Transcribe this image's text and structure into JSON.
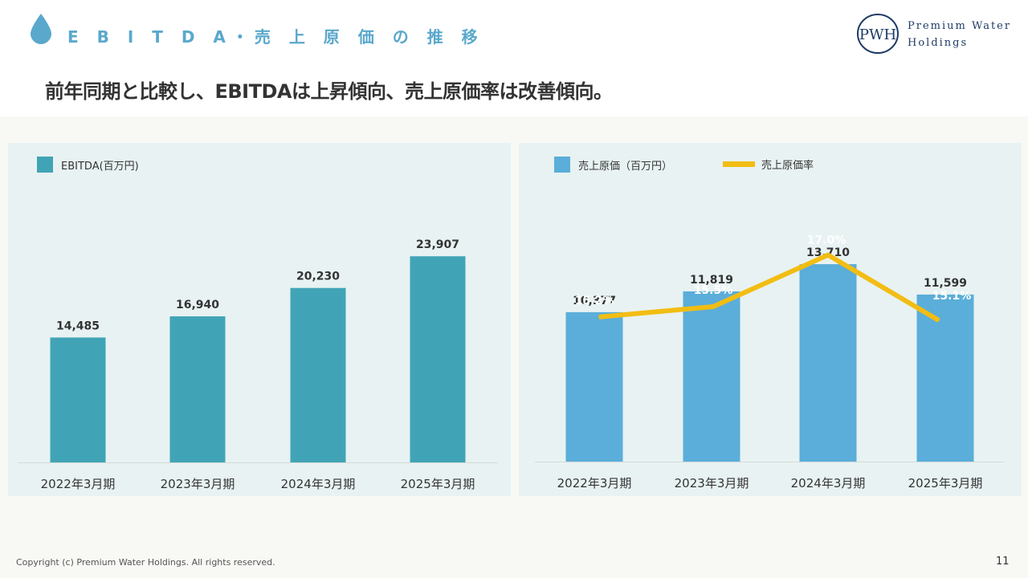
{
  "header": {
    "section_title": "E B I T D A・売 上 原 価 の 推 移",
    "headline": "前年同期と比較し、EBITDAは上昇傾向、売上原価率は改善傾向。",
    "logo_line1": "Premium Water",
    "logo_line2": "Holdings",
    "logo_mark_letters": "PWH"
  },
  "colors": {
    "ebitda_bar": "#41a4b6",
    "cost_bar": "#5aaed9",
    "rate_line": "#f2bd13",
    "accent": "#5aa8cc"
  },
  "icons": {
    "section": "water-drop-icon",
    "logo": "pwh-logo-icon"
  },
  "chart_data": [
    {
      "type": "bar",
      "categories": [
        "2022年3月期",
        "2023年3月期",
        "2024年3月期",
        "2025年3月期"
      ],
      "series": [
        {
          "name": "EBITDA(百万円)",
          "values": [
            14485,
            16940,
            20230,
            23907
          ]
        }
      ],
      "value_labels": [
        "14,485",
        "16,940",
        "20,230",
        "23,907"
      ],
      "ylim": [
        0,
        27000
      ],
      "grid": false,
      "legend": "top-left"
    },
    {
      "type": "bar",
      "categories": [
        "2022年3月期",
        "2023年3月期",
        "2024年3月期",
        "2025年3月期"
      ],
      "series": [
        {
          "name": "売上原価（百万円）",
          "type": "bar",
          "values": [
            10377,
            11819,
            13710,
            11599
          ]
        },
        {
          "name": "売上原価率",
          "type": "line",
          "values": [
            15.2,
            15.5,
            17.0,
            15.1
          ]
        }
      ],
      "value_labels": [
        "10,377",
        "11,819",
        "13,710",
        "11,599"
      ],
      "rate_labels": [
        "15.2%",
        "15.5%",
        "17.0%",
        "15.1%"
      ],
      "ylim": [
        0,
        16500
      ],
      "y2lim": [
        11.0,
        17.9
      ],
      "grid": false,
      "legend": "top-left"
    }
  ],
  "footer": {
    "copyright": "Copyright (c) Premium Water Holdings. All rights reserved.",
    "page_number": "11"
  }
}
